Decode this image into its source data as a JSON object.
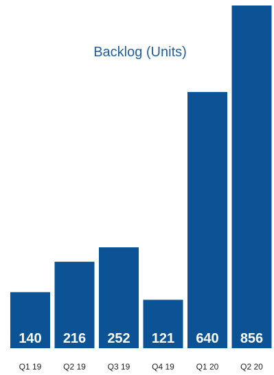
{
  "chart_data": {
    "type": "bar",
    "title": "Backlog (Units)",
    "categories": [
      "Q1 19",
      "Q2 19",
      "Q3 19",
      "Q4 19",
      "Q1 20",
      "Q2 20"
    ],
    "values": [
      140,
      216,
      252,
      121,
      640,
      856
    ],
    "data_labels": [
      "140",
      "216",
      "252",
      "121",
      "640",
      "856"
    ],
    "bar_color": "#0b5395",
    "title_color": "#1f5f99",
    "label_color": "#ffffff",
    "tick_color": "#222222",
    "grid": false,
    "legend": "none"
  }
}
